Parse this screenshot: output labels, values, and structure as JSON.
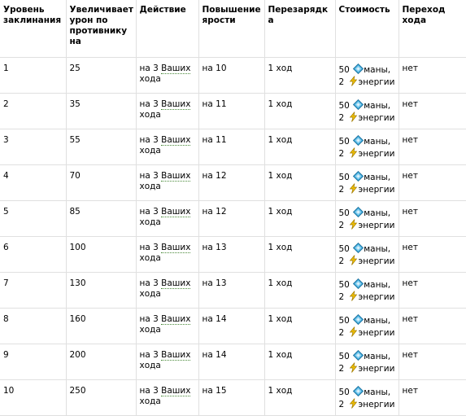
{
  "table": {
    "headers": [
      "Уровень заклинания",
      "Увеличивает урон по противнику на",
      "Действие",
      "Повышение ярости",
      "Перезарядка",
      "Стоимость",
      "Переход хода"
    ],
    "rows": [
      {
        "level": "1",
        "damage": "25",
        "action_prefix": "на 3",
        "action_link": "Ваших",
        "action_suffix": "хода",
        "rage": "на 10",
        "cooldown": "1 ход",
        "mana_amount": "50",
        "mana_label": "маны,",
        "energy_amount": "2",
        "energy_label": "энергии",
        "turn_pass": "нет"
      },
      {
        "level": "2",
        "damage": "35",
        "action_prefix": "на 3",
        "action_link": "Ваших",
        "action_suffix": "хода",
        "rage": "на 11",
        "cooldown": "1 ход",
        "mana_amount": "50",
        "mana_label": "маны,",
        "energy_amount": "2",
        "energy_label": "энергии",
        "turn_pass": "нет"
      },
      {
        "level": "3",
        "damage": "55",
        "action_prefix": "на 3",
        "action_link": "Ваших",
        "action_suffix": "хода",
        "rage": "на 11",
        "cooldown": "1 ход",
        "mana_amount": "50",
        "mana_label": "маны,",
        "energy_amount": "2",
        "energy_label": "энергии",
        "turn_pass": "нет"
      },
      {
        "level": "4",
        "damage": "70",
        "action_prefix": "на 3",
        "action_link": "Ваших",
        "action_suffix": "хода",
        "rage": "на 12",
        "cooldown": "1 ход",
        "mana_amount": "50",
        "mana_label": "маны,",
        "energy_amount": "2",
        "energy_label": "энергии",
        "turn_pass": "нет"
      },
      {
        "level": "5",
        "damage": "85",
        "action_prefix": "на 3",
        "action_link": "Ваших",
        "action_suffix": "хода",
        "rage": "на 12",
        "cooldown": "1 ход",
        "mana_amount": "50",
        "mana_label": "маны,",
        "energy_amount": "2",
        "energy_label": "энергии",
        "turn_pass": "нет"
      },
      {
        "level": "6",
        "damage": "100",
        "action_prefix": "на 3",
        "action_link": "Ваших",
        "action_suffix": "хода",
        "rage": "на 13",
        "cooldown": "1 ход",
        "mana_amount": "50",
        "mana_label": "маны,",
        "energy_amount": "2",
        "energy_label": "энергии",
        "turn_pass": "нет"
      },
      {
        "level": "7",
        "damage": "130",
        "action_prefix": "на 3",
        "action_link": "Ваших",
        "action_suffix": "хода",
        "rage": "на 13",
        "cooldown": "1 ход",
        "mana_amount": "50",
        "mana_label": "маны,",
        "energy_amount": "2",
        "energy_label": "энергии",
        "turn_pass": "нет"
      },
      {
        "level": "8",
        "damage": "160",
        "action_prefix": "на 3",
        "action_link": "Ваших",
        "action_suffix": "хода",
        "rage": "на 14",
        "cooldown": "1 ход",
        "mana_amount": "50",
        "mana_label": "маны,",
        "energy_amount": "2",
        "energy_label": "энергии",
        "turn_pass": "нет"
      },
      {
        "level": "9",
        "damage": "200",
        "action_prefix": "на 3",
        "action_link": "Ваших",
        "action_suffix": "хода",
        "rage": "на 14",
        "cooldown": "1 ход",
        "mana_amount": "50",
        "mana_label": "маны,",
        "energy_amount": "2",
        "energy_label": "энергии",
        "turn_pass": "нет"
      },
      {
        "level": "10",
        "damage": "250",
        "action_prefix": "на 3",
        "action_link": "Ваших",
        "action_suffix": "хода",
        "rage": "на 15",
        "cooldown": "1 ход",
        "mana_amount": "50",
        "mana_label": "маны,",
        "energy_amount": "2",
        "energy_label": "энергии",
        "turn_pass": "нет"
      }
    ]
  },
  "icons": {
    "mana": "mana-crystal-icon",
    "energy": "lightning-bolt-icon"
  },
  "colors": {
    "mana_icon": "#3aa7d8",
    "energy_icon": "#f2c200",
    "grid_line": "#e0e0e0",
    "link_underline": "#4a8a3a"
  }
}
